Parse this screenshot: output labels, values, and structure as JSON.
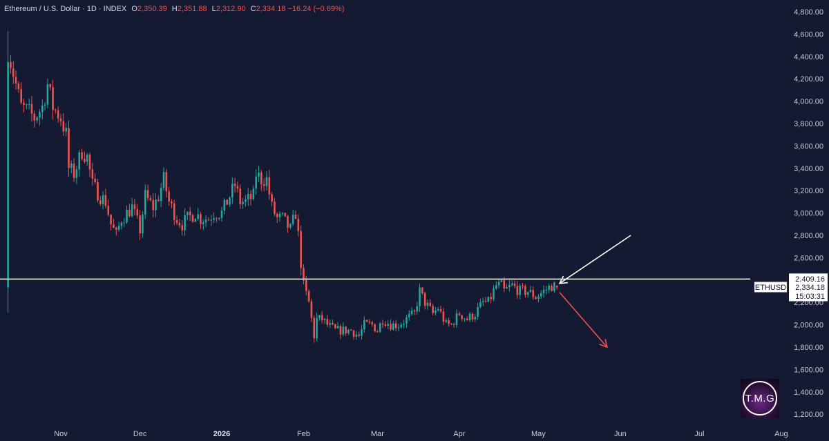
{
  "header": {
    "symbol": "Ethereum / U.S. Dollar · 1D · INDEX",
    "open_label": "O",
    "open": "2,350.39",
    "high_label": "H",
    "high": "2,351.88",
    "low_label": "L",
    "low": "2,312.90",
    "close_label": "C",
    "close": "2,334.18",
    "change": "−16.24 (−0.69%)"
  },
  "price_tags": {
    "level": "2,409.16",
    "symbol": "ETHUSD",
    "price": "2,334.18",
    "countdown": "15:03:31"
  },
  "logo": {
    "text": "T.M.G"
  },
  "colors": {
    "background": "#131a32",
    "up": "#26a69a",
    "down": "#ef5350",
    "level_line": "#ffffff",
    "arrow_projection": "#ef5350",
    "arrow_pointer": "#ffffff"
  },
  "chart_data": {
    "type": "candlestick",
    "title": "Ethereum / U.S. Dollar · 1D · INDEX",
    "x_ticks": [
      "Nov",
      "Dec",
      "2026",
      "Feb",
      "Mar",
      "Apr",
      "May",
      "Jun",
      "Jul",
      "Aug"
    ],
    "y_ticks": [
      "1,200.00",
      "1,400.00",
      "1,600.00",
      "1,800.00",
      "2,000.00",
      "2,200.00",
      "2,400.00",
      "2,600.00",
      "2,800.00",
      "3,000.00",
      "3,200.00",
      "3,400.00",
      "3,600.00",
      "3,800.00",
      "4,000.00",
      "4,200.00",
      "4,400.00",
      "4,600.00",
      "4,800.00"
    ],
    "ylim": [
      1200,
      4800
    ],
    "grid": false,
    "horizontal_level": 2409.16,
    "last_price": 2334.18,
    "ohlc_last": {
      "open": 2350.39,
      "high": 2351.88,
      "low": 2312.9,
      "close": 2334.18,
      "change": -16.24,
      "change_pct": -0.69
    },
    "close_path": [
      [
        "2025-10-12",
        4450
      ],
      [
        "2025-10-14",
        4250
      ],
      [
        "2025-10-17",
        3950
      ],
      [
        "2025-10-20",
        3900
      ],
      [
        "2025-10-22",
        3850
      ],
      [
        "2025-10-25",
        3950
      ],
      [
        "2025-10-27",
        4150
      ],
      [
        "2025-10-29",
        3950
      ],
      [
        "2025-11-01",
        3850
      ],
      [
        "2025-11-03",
        3700
      ],
      [
        "2025-11-04",
        3400
      ],
      [
        "2025-11-06",
        3350
      ],
      [
        "2025-11-09",
        3550
      ],
      [
        "2025-11-11",
        3500
      ],
      [
        "2025-11-13",
        3250
      ],
      [
        "2025-11-16",
        3150
      ],
      [
        "2025-11-18",
        3100
      ],
      [
        "2025-11-20",
        2900
      ],
      [
        "2025-11-22",
        2800
      ],
      [
        "2025-11-24",
        2950
      ],
      [
        "2025-11-26",
        3000
      ],
      [
        "2025-11-28",
        3050
      ],
      [
        "2025-12-01",
        2850
      ],
      [
        "2025-12-03",
        3150
      ],
      [
        "2025-12-06",
        3050
      ],
      [
        "2025-12-08",
        3150
      ],
      [
        "2025-12-10",
        3300
      ],
      [
        "2025-12-12",
        3100
      ],
      [
        "2025-12-15",
        2950
      ],
      [
        "2025-12-17",
        2900
      ],
      [
        "2025-12-19",
        2950
      ],
      [
        "2025-12-22",
        3000
      ],
      [
        "2025-12-24",
        2950
      ],
      [
        "2025-12-27",
        2950
      ],
      [
        "2025-12-29",
        3000
      ],
      [
        "2026-01-01",
        3000
      ],
      [
        "2026-01-03",
        3100
      ],
      [
        "2026-01-06",
        3250
      ],
      [
        "2026-01-08",
        3100
      ],
      [
        "2026-01-10",
        3100
      ],
      [
        "2026-01-13",
        3150
      ],
      [
        "2026-01-14",
        3350
      ],
      [
        "2026-01-16",
        3300
      ],
      [
        "2026-01-18",
        3300
      ],
      [
        "2026-01-20",
        3050
      ],
      [
        "2026-01-22",
        2950
      ],
      [
        "2026-01-24",
        2950
      ],
      [
        "2026-01-27",
        2850
      ],
      [
        "2026-01-29",
        3000
      ],
      [
        "2026-01-30",
        2800
      ],
      [
        "2026-01-31",
        2550
      ],
      [
        "2026-02-01",
        2350
      ],
      [
        "2026-02-03",
        2200
      ],
      [
        "2026-02-05",
        1900
      ],
      [
        "2026-02-06",
        2050
      ],
      [
        "2026-02-08",
        2050
      ],
      [
        "2026-02-10",
        2000
      ],
      [
        "2026-02-13",
        1950
      ],
      [
        "2026-02-16",
        1950
      ],
      [
        "2026-02-19",
        1950
      ],
      [
        "2026-02-22",
        1900
      ],
      [
        "2026-02-24",
        2000
      ],
      [
        "2026-02-27",
        2000
      ],
      [
        "2026-03-01",
        1950
      ],
      [
        "2026-03-03",
        2050
      ],
      [
        "2026-03-06",
        2000
      ],
      [
        "2026-03-09",
        2000
      ],
      [
        "2026-03-12",
        2050
      ],
      [
        "2026-03-15",
        2100
      ],
      [
        "2026-03-17",
        2300
      ],
      [
        "2026-03-19",
        2200
      ],
      [
        "2026-03-22",
        2100
      ],
      [
        "2026-03-24",
        2150
      ],
      [
        "2026-03-27",
        2000
      ],
      [
        "2026-03-29",
        2000
      ],
      [
        "2026-04-01",
        2100
      ],
      [
        "2026-04-04",
        2050
      ],
      [
        "2026-04-07",
        2100
      ],
      [
        "2026-04-10",
        2200
      ],
      [
        "2026-04-12",
        2200
      ],
      [
        "2026-04-15",
        2350
      ],
      [
        "2026-04-17",
        2350
      ],
      [
        "2026-04-18",
        2300
      ],
      [
        "2026-04-21",
        2350
      ],
      [
        "2026-04-24",
        2300
      ],
      [
        "2026-04-27",
        2300
      ],
      [
        "2026-04-30",
        2250
      ],
      [
        "2026-05-03",
        2300
      ],
      [
        "2026-05-06",
        2350
      ],
      [
        "2026-05-08",
        2334
      ]
    ],
    "annotations": [
      {
        "type": "arrow",
        "color": "white",
        "from": [
          "2026-06-05",
          2800
        ],
        "to": [
          "2026-05-09",
          2370
        ]
      },
      {
        "type": "arrow",
        "color": "red",
        "from": [
          "2026-05-09",
          2290
        ],
        "to": [
          "2026-05-27",
          1800
        ]
      }
    ]
  }
}
